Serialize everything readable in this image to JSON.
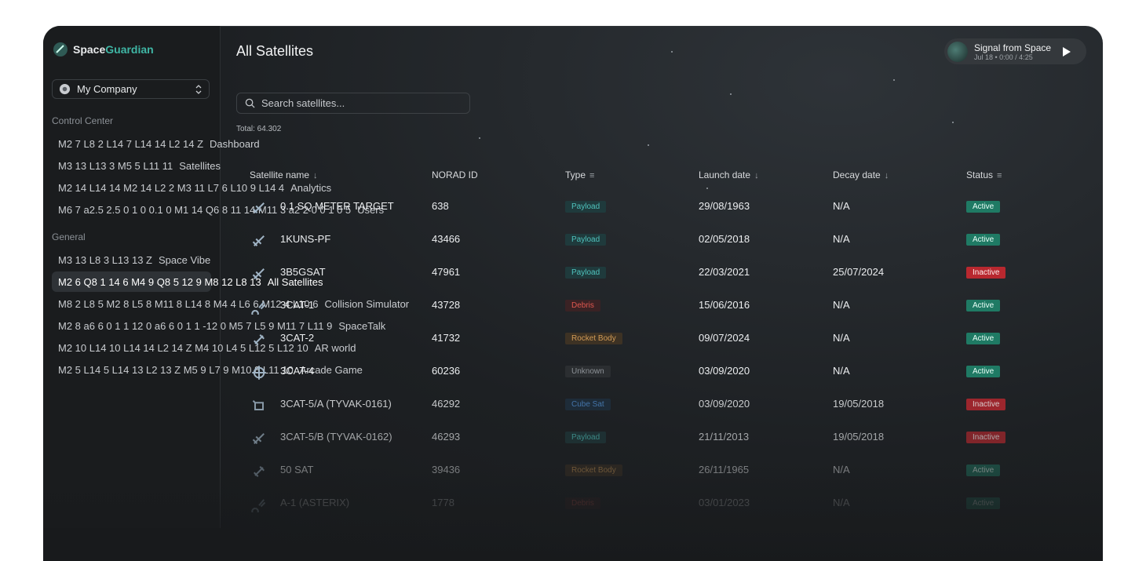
{
  "sidebar": {
    "brand": [
      "Space",
      "Guardian"
    ],
    "company": "My Company",
    "sections": [
      {
        "title": "Control Center",
        "items": [
          "Dashboard",
          "Satellites",
          "Analytics",
          "Users"
        ]
      },
      {
        "title": "General",
        "items": [
          "Space Vibe",
          "All Satellites",
          "Collision Simulator",
          "SpaceTalk",
          "AR world",
          "Arcade Game"
        ]
      }
    ]
  },
  "header": {
    "title": "All Satellites",
    "player": {
      "track": "Signal from Space",
      "meta": "Jul 18 • 0:00 / 4:25"
    }
  },
  "search": {
    "placeholder": "Search satellites..."
  },
  "total": "Total: 64.302",
  "table": {
    "columns": [
      "Satellite name",
      "NORAD ID",
      "Type",
      "Launch date",
      "Decay date",
      "Status"
    ],
    "rows": [
      [
        "0.1 SQ METER TARGET",
        "638",
        "Payload",
        "29/08/1963",
        "N/A",
        "Active"
      ],
      [
        "1KUNS-PF",
        "43466",
        "Payload",
        "02/05/2018",
        "N/A",
        "Active"
      ],
      [
        "3B5GSAT",
        "47961",
        "Payload",
        "22/03/2021",
        "25/07/2024",
        "Inactive"
      ],
      [
        "3CAT-1",
        "43728",
        "Debris",
        "15/06/2016",
        "N/A",
        "Active"
      ],
      [
        "3CAT-2",
        "41732",
        "Rocket Body",
        "09/07/2024",
        "N/A",
        "Active"
      ],
      [
        "3CAT-4",
        "60236",
        "Unknown",
        "03/09/2020",
        "N/A",
        "Active"
      ],
      [
        "3CAT-5/A (TYVAK-0161)",
        "46292",
        "Cube Sat",
        "03/09/2020",
        "19/05/2018",
        "Inactive"
      ],
      [
        "3CAT-5/B (TYVAK-0162)",
        "46293",
        "Payload",
        "21/11/2013",
        "19/05/2018",
        "Inactive"
      ],
      [
        "50 SAT",
        "39436",
        "Rocket Body",
        "26/11/1965",
        "N/A",
        "Active"
      ],
      [
        "A-1 (ASTERIX)",
        "1778",
        "Debris",
        "03/01/2023",
        "N/A",
        "Active"
      ]
    ]
  }
}
